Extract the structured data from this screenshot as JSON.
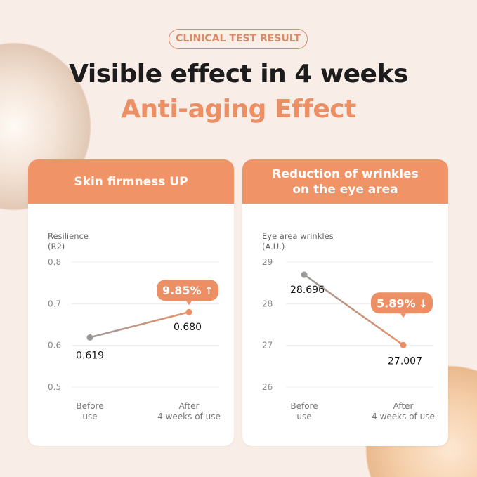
{
  "badge": "CLINICAL TEST RESULT",
  "title_line1": "Visible effect in 4 weeks",
  "title_line2": "Anti-aging Effect",
  "colors": {
    "accent": "#ec8f64",
    "before": "#9a9a9a",
    "grid": "#ececec"
  },
  "chart_data": [
    {
      "type": "line",
      "title": "Skin firmness UP",
      "ylabel": "Resilience\n(R2)",
      "ylabel_lines": [
        "Resilience",
        "(R2)"
      ],
      "categories": [
        "Before use",
        "After 4 weeks of use"
      ],
      "category_lines": [
        [
          "Before",
          "use"
        ],
        [
          "After",
          "4 weeks of use"
        ]
      ],
      "values": [
        0.619,
        0.68
      ],
      "value_labels": [
        "0.619",
        "0.680"
      ],
      "yticks": [
        0.8,
        0.7,
        0.6,
        0.5
      ],
      "ytick_labels": [
        "0.8",
        "0.7",
        "0.6",
        "0.5"
      ],
      "ylim": [
        0.5,
        0.8
      ],
      "grid": true,
      "callout": "9.85%",
      "callout_direction": "up"
    },
    {
      "type": "line",
      "title": "Reduction of wrinkles\non the eye area",
      "ylabel_lines": [
        "Eye area wrinkles",
        "(A.U.)"
      ],
      "categories": [
        "Before use",
        "After 4 weeks of use"
      ],
      "category_lines": [
        [
          "Before",
          "use"
        ],
        [
          "After",
          "4 weeks of use"
        ]
      ],
      "values": [
        28.696,
        27.007
      ],
      "value_labels": [
        "28.696",
        "27.007"
      ],
      "yticks": [
        29,
        28,
        27,
        26
      ],
      "ytick_labels": [
        "29",
        "28",
        "27",
        "26"
      ],
      "ylim": [
        26,
        29
      ],
      "grid": true,
      "callout": "5.89%",
      "callout_direction": "down"
    }
  ]
}
